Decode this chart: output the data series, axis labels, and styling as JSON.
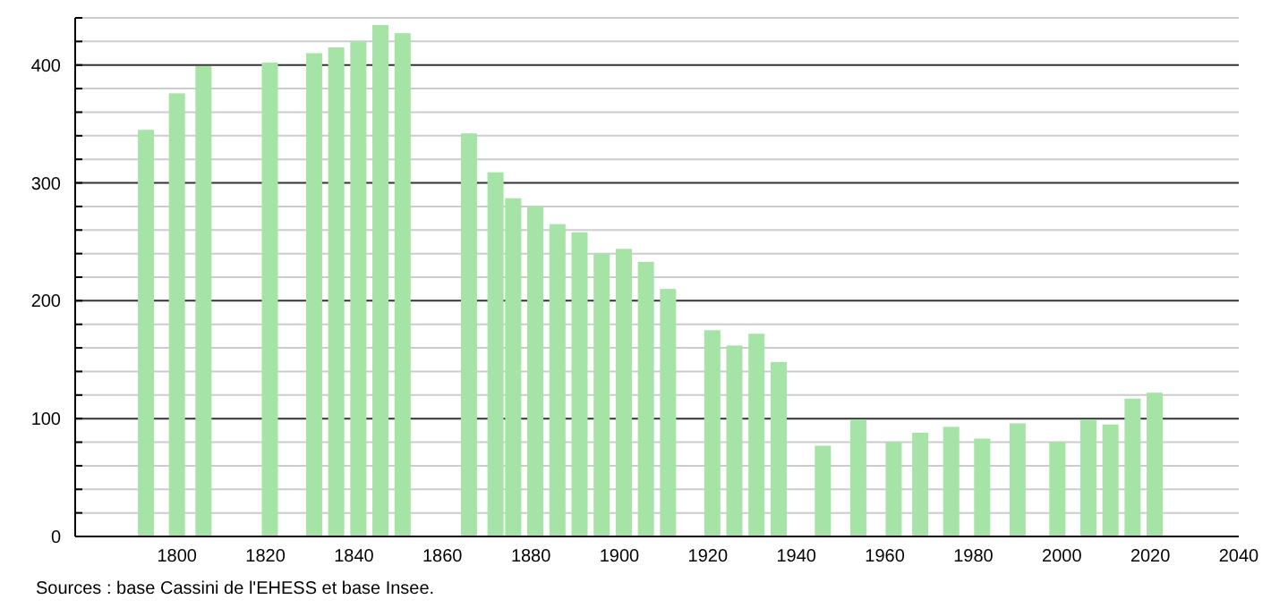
{
  "chart_data": {
    "type": "bar",
    "color": "#a6e3a6",
    "x": [
      1793,
      1800,
      1806,
      1821,
      1831,
      1836,
      1841,
      1846,
      1851,
      1866,
      1872,
      1876,
      1881,
      1886,
      1891,
      1896,
      1901,
      1906,
      1911,
      1921,
      1926,
      1931,
      1936,
      1946,
      1954,
      1962,
      1968,
      1975,
      1982,
      1990,
      1999,
      2006,
      2011,
      2016,
      2021
    ],
    "values": [
      345,
      376,
      399,
      402,
      410,
      415,
      420,
      434,
      427,
      342,
      309,
      287,
      280,
      265,
      258,
      240,
      244,
      233,
      210,
      175,
      162,
      172,
      148,
      77,
      99,
      80,
      88,
      93,
      83,
      96,
      80,
      99,
      95,
      117,
      122
    ],
    "xlim": [
      1777,
      2040
    ],
    "xticks": [
      1800,
      1820,
      1840,
      1860,
      1880,
      1900,
      1920,
      1940,
      1960,
      1980,
      2000,
      2020,
      2040
    ],
    "ylim": [
      0,
      440
    ],
    "yticks": [
      0,
      {
        "value": 20,
        "label": null
      },
      {
        "value": 40,
        "label": null
      },
      {
        "value": 60,
        "label": null
      },
      {
        "value": 80,
        "label": null
      },
      100,
      {
        "value": 120,
        "label": null
      },
      {
        "value": 140,
        "label": null
      },
      {
        "value": 160,
        "label": null
      },
      {
        "value": 180,
        "label": null
      },
      200,
      {
        "value": 220,
        "label": null
      },
      {
        "value": 240,
        "label": null
      },
      {
        "value": 260,
        "label": null
      },
      {
        "value": 280,
        "label": null
      },
      300,
      {
        "value": 320,
        "label": null
      },
      {
        "value": 340,
        "label": null
      },
      {
        "value": 360,
        "label": null
      },
      {
        "value": 380,
        "label": null
      },
      400,
      {
        "value": 420,
        "label": null
      },
      {
        "value": 440,
        "label": null
      }
    ],
    "grid": true,
    "annotations": [
      "Sources : base Cassini de l'EHESS et base Insee."
    ]
  }
}
